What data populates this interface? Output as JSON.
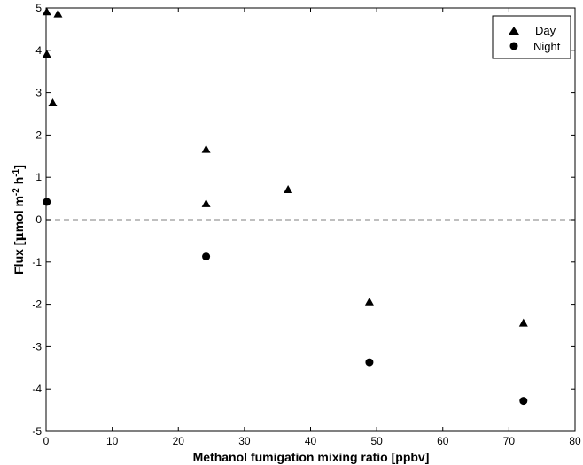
{
  "chart_data": {
    "type": "scatter",
    "xlabel": "Methanol fumigation mixing ratio [ppbv]",
    "ylabel": {
      "prefix": "Flux [",
      "mu": "μ",
      "mid1": "mol m",
      "sup1": "-2",
      "mid2": " h",
      "sup2": "-1",
      "suffix": "]"
    },
    "xlim": [
      0,
      80
    ],
    "ylim": [
      -5,
      5
    ],
    "xticks": [
      0,
      10,
      20,
      30,
      40,
      50,
      60,
      70,
      80
    ],
    "yticks": [
      -5,
      -4,
      -3,
      -2,
      -1,
      0,
      1,
      2,
      3,
      4,
      5
    ],
    "grid": false,
    "legend_position": "top-right",
    "reference_line": {
      "y": 0,
      "style": "dashed",
      "color": "#999999"
    },
    "series": [
      {
        "name": "Day",
        "marker": "triangle",
        "color": "#000000",
        "points": [
          {
            "x": 0.1,
            "y": 4.9
          },
          {
            "x": 1.8,
            "y": 4.85
          },
          {
            "x": 0.1,
            "y": 3.9
          },
          {
            "x": 1.0,
            "y": 2.75
          },
          {
            "x": 24.2,
            "y": 1.65
          },
          {
            "x": 24.2,
            "y": 0.37
          },
          {
            "x": 36.6,
            "y": 0.7
          },
          {
            "x": 48.9,
            "y": -1.95
          },
          {
            "x": 72.2,
            "y": -2.45
          }
        ]
      },
      {
        "name": "Night",
        "marker": "circle",
        "color": "#000000",
        "points": [
          {
            "x": 0.1,
            "y": 0.42
          },
          {
            "x": 24.2,
            "y": -0.87
          },
          {
            "x": 48.9,
            "y": -3.37
          },
          {
            "x": 72.2,
            "y": -4.28
          }
        ]
      }
    ]
  }
}
